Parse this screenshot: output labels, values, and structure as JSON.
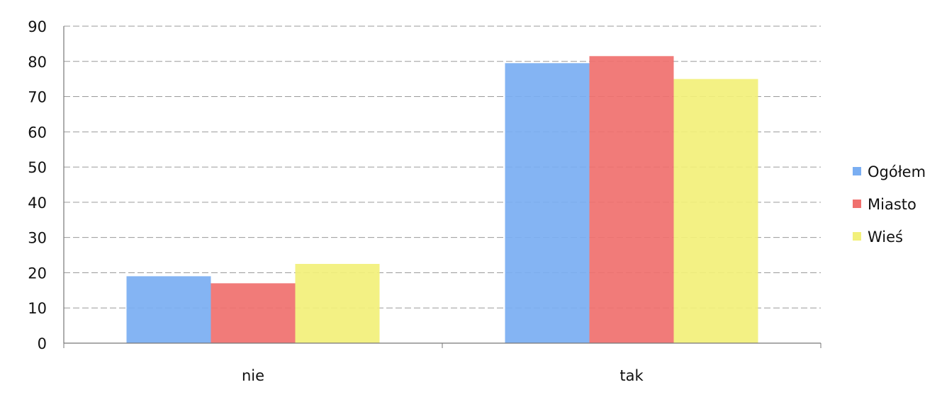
{
  "chart_data": {
    "type": "bar",
    "title": "",
    "xlabel": "",
    "ylabel": "",
    "categories": [
      "nie",
      "tak"
    ],
    "series": [
      {
        "name": "Ogółem",
        "values": [
          19,
          79.5
        ],
        "color": "#7aaef2"
      },
      {
        "name": "Miasto",
        "values": [
          17,
          81.5
        ],
        "color": "#f0706e"
      },
      {
        "name": "Wieś",
        "values": [
          22.5,
          75
        ],
        "color": "#f2f07a"
      }
    ],
    "ylim": [
      0,
      90
    ],
    "yticks": [
      0,
      10,
      20,
      30,
      40,
      50,
      60,
      70,
      80,
      90
    ],
    "grid": true,
    "legend_position": "right"
  }
}
